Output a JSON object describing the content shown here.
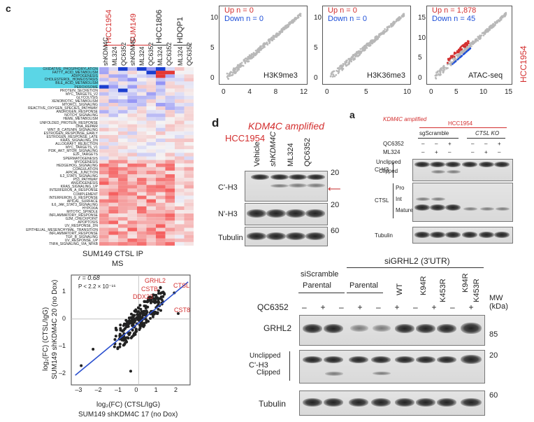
{
  "panel_c": {
    "letter": "c",
    "groups": [
      "HCC1954",
      "SUM149",
      "HCC1806",
      "HDQP1"
    ],
    "columns": [
      "shKDM4C",
      "ML324",
      "QC6352",
      "shKDM4C",
      "ML324",
      "QC6352",
      "ML324",
      "QC6352",
      "ML324",
      "QC6352"
    ],
    "pathways": [
      "OXIDATIVE_PHOSPHORYLATION",
      "FATTY_ACID_METABOLISM",
      "ADIPOGENESIS",
      "CHOLESTEROL_HOMEOSTASIS",
      "BILE_ACID_METABOLISM",
      "PEROXISOME",
      "PROTEIN_SECRETION",
      "MYC_TARGETS_V2",
      "GLYCOLYSIS",
      "XENOBIOTIC_METABOLISM",
      "MTORC1_SIGNALING",
      "REACTIVE_OXYGEN_SPECIES_PATHWAY",
      "ANDROGEN_RESPONSE",
      "NOTCH_SIGNALING",
      "HEME_METABOLISM",
      "UNFOLDED_PROTEIN_RESPONSE",
      "DNA_REPAIR",
      "WNT_B_CATENIN_SIGNALING",
      "ESTROGEN_RESPONSE_EARLY",
      "ESTROGEN_RESPONSE_LATE",
      "KRAS_SIGNALING_DN",
      "ALLOGRAFT_REJECTION",
      "MYC_TARGETS_V1",
      "PI3K_AKT_MTOR_SIGNALING",
      "E2F_TARGETS",
      "SPERMATOGENESIS",
      "MYOGENESIS",
      "HEDGEHOG_SIGNALING",
      "COAGULATION",
      "APICAL_JUNCTION",
      "IL2_STAT5_SIGNALING",
      "P53_PATHWAY",
      "ANGIOGENESIS",
      "KRAS_SIGNALING_UP",
      "INTERFERON_A_RESPONSE",
      "COMPLEMENT",
      "INTERFERON_G_RESPONSE",
      "APICAL_SURFACE",
      "IL6_JAK_STAT3_SIGNALING",
      "HYPOXIA",
      "MITOTIC_SPINDLE",
      "INFLAMMATORY_RESPONSE",
      "G2M_CHECKPOINT",
      "APOPTOSIS",
      "UV_RESPONSE_DN",
      "EPITHELIAL_MESENCHYMAL_TRANSITION",
      "INFLAMMATORY_RESPONSE",
      "TGF_B_SIGNALING",
      "UV_RESPONSE_UP",
      "TNFA_SIGNALING_VIA_NFKB"
    ],
    "scatters": [
      {
        "up": "Up n = 0",
        "down": "Down n = 0",
        "label": "H3K9me3",
        "yticks": [
          "0",
          "5",
          "10"
        ],
        "xticks": [
          "0",
          "4",
          "8",
          "12"
        ]
      },
      {
        "up": "Up n = 0",
        "down": "Down n = 0",
        "label": "H3K36me3",
        "yticks": [
          "0",
          "5",
          "10"
        ],
        "xticks": [
          "0",
          "5",
          "10"
        ]
      },
      {
        "up": "Up n = 1,878",
        "down": "Down n = 45",
        "label": "ATAC-seq",
        "yticks": [
          "0",
          "5",
          "10",
          "15"
        ],
        "xticks": [
          "0",
          "5",
          "10",
          "15"
        ]
      }
    ],
    "side_label": "HCC1954"
  },
  "panel_d": {
    "letter": "d",
    "title": "KDM4C amplified",
    "cell": "HCC1954",
    "lanes": [
      "Vehicle",
      "shKDM4C",
      "ML324",
      "QC6352"
    ],
    "blots": [
      "C'-H3",
      "N'-H3",
      "Tubulin"
    ],
    "mw": [
      "20",
      "20",
      "60"
    ]
  },
  "panel_a": {
    "letter": "a",
    "title": "KDM4C amplified",
    "cell": "HCC1954",
    "groups": [
      "sgScramble",
      "CTSL KO"
    ],
    "rows": [
      {
        "label": "QC6352",
        "values": [
          "–",
          "–",
          "+",
          "–",
          "–",
          "+"
        ]
      },
      {
        "label": "ML324",
        "values": [
          "–",
          "+",
          "–",
          "–",
          "+",
          "–"
        ]
      }
    ],
    "blot1_label": "C'-H3",
    "blot1_bands": [
      "Unclipped",
      "Clipped"
    ],
    "blot2_label": "CTSL",
    "blot2_bands": [
      "Pro",
      "Int",
      "Mature"
    ],
    "blot3_label": "Tubulin"
  },
  "scatter_ms": {
    "title1": "SUM149 CTSL IP",
    "title2": "MS",
    "stats_r": "r = 0.68",
    "stats_p": "P < 2.2 × 10⁻¹⁶",
    "genes": [
      "GRHL2",
      "CSTB",
      "DDX23",
      "CTSL",
      "CST8"
    ],
    "ylabel1": "log₂(FC) (CTSL/IgG)",
    "ylabel2": "SUM149 shKDM4C 20 (no Dox)",
    "xlabel1": "log₂(FC) (CTSL/IgG)",
    "xlabel2": "SUM149 shKDM4C 17 (no Dox)",
    "yticks": [
      "1",
      "0",
      "–1",
      "–2"
    ],
    "xticks": [
      "–3",
      "–2",
      "–1",
      "0",
      "1",
      "2"
    ]
  },
  "panel_b": {
    "top_label": "siGRHL2 (3'UTR)",
    "group_a": "siScramble",
    "group_b": "Parental",
    "lanes": [
      "Parental",
      "WT",
      "K94R",
      "K453R",
      "K94R"
    ],
    "lane_k453r": "K453R",
    "qc_label": "QC6352",
    "qc_values": [
      "–",
      "+",
      "–",
      "+",
      "–",
      "+",
      "–",
      "+",
      "–",
      "+",
      "–",
      "+"
    ],
    "mw_title": "MW",
    "mw_unit": "(kDa)",
    "blots": [
      "GRHL2",
      "C'-H3",
      "Tubulin"
    ],
    "mw": [
      "85",
      "20",
      "60"
    ],
    "bands": [
      "Unclipped",
      "Clipped"
    ]
  }
}
